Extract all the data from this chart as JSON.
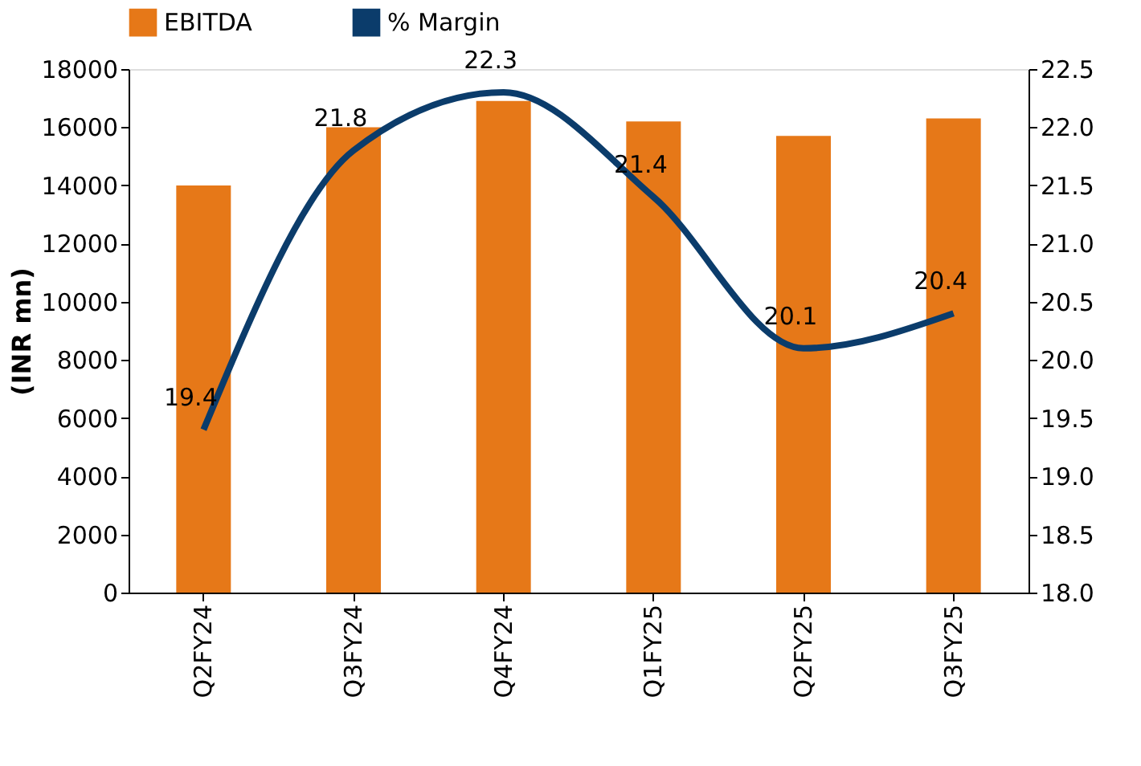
{
  "chart_data": {
    "type": "bar",
    "ylabel": "(INR mn)",
    "categories": [
      "Q2FY24",
      "Q3FY24",
      "Q4FY24",
      "Q1FY25",
      "Q2FY25",
      "Q3FY25"
    ],
    "series": [
      {
        "name": "EBITDA",
        "color": "#e67818",
        "values": [
          14000,
          16000,
          16900,
          16200,
          15700,
          16300
        ]
      },
      {
        "name": "% Margin",
        "type": "line",
        "axis": "y2",
        "color": "#0b3c6b",
        "values": [
          19.4,
          21.8,
          22.3,
          21.4,
          20.1,
          20.4
        ],
        "data_labels": true
      }
    ],
    "ylim": [
      0,
      18000
    ],
    "yticks": [
      0,
      2000,
      4000,
      6000,
      8000,
      10000,
      12000,
      14000,
      16000,
      18000
    ],
    "y2lim": [
      18.0,
      22.5
    ],
    "y2ticks": [
      {
        "value": 18.0,
        "label": "18.0"
      },
      {
        "value": 18.5,
        "label": "18.5"
      },
      {
        "value": 19.0,
        "label": "19.0"
      },
      {
        "value": 19.5,
        "label": "19.5"
      },
      {
        "value": 20.0,
        "label": "20.0"
      },
      {
        "value": 20.5,
        "label": "20.5"
      },
      {
        "value": 21.0,
        "label": "21.0"
      },
      {
        "value": 21.5,
        "label": "21.5"
      },
      {
        "value": 22.0,
        "label": "22.0"
      },
      {
        "value": 22.5,
        "label": "22.5"
      }
    ],
    "legend": "top",
    "grid": false
  }
}
